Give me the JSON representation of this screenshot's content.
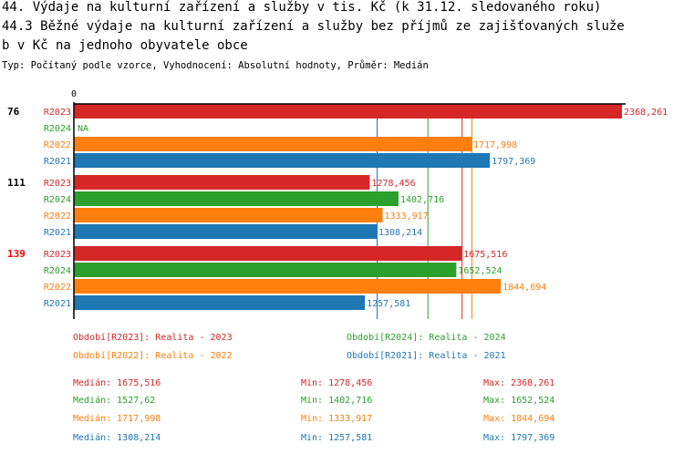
{
  "title_lines": [
    "44. Výdaje na kulturní zařízení a služby v tis. Kč (k 31.12. sledovaného roku)",
    "44.3 Běžné výdaje na kulturní zařízení a služby bez příjmů ze zajišťovaných služe",
    "b v Kč na jednoho obyvatele obce"
  ],
  "subtitle": "Typ: Počítaný podle vzorce, Vyhodnocení: Absolutní hodnoty, Průměr: Medián",
  "colors": {
    "R2023": "#d62728",
    "R2024": "#2ca02c",
    "R2022": "#ff7f0e",
    "R2021": "#1f77b4",
    "highlight": "#ff0000"
  },
  "chart_data": {
    "type": "bar",
    "orientation": "horizontal",
    "x_tick_labels": [
      "0"
    ],
    "xlim": [
      0,
      2368.261
    ],
    "groups": [
      {
        "label": "76",
        "highlight": false,
        "bars": [
          {
            "series": "R2023",
            "value": 2368.261,
            "label": "2368,261"
          },
          {
            "series": "R2024",
            "value": null,
            "label": "NA"
          },
          {
            "series": "R2022",
            "value": 1717.998,
            "label": "1717,998"
          },
          {
            "series": "R2021",
            "value": 1797.369,
            "label": "1797,369"
          }
        ]
      },
      {
        "label": "111",
        "highlight": false,
        "bars": [
          {
            "series": "R2023",
            "value": 1278.456,
            "label": "1278,456"
          },
          {
            "series": "R2024",
            "value": 1402.716,
            "label": "1402,716"
          },
          {
            "series": "R2022",
            "value": 1333.917,
            "label": "1333,917"
          },
          {
            "series": "R2021",
            "value": 1308.214,
            "label": "1308,214"
          }
        ]
      },
      {
        "label": "139",
        "highlight": true,
        "bars": [
          {
            "series": "R2023",
            "value": 1675.516,
            "label": "1675,516"
          },
          {
            "series": "R2024",
            "value": 1652.524,
            "label": "1652,524"
          },
          {
            "series": "R2022",
            "value": 1844.694,
            "label": "1844,694"
          },
          {
            "series": "R2021",
            "value": 1257.581,
            "label": "1257,581"
          }
        ]
      }
    ],
    "median_lines": [
      {
        "series": "R2021",
        "value": 1308.214
      },
      {
        "series": "R2024",
        "value": 1527.62
      },
      {
        "series": "R2023",
        "value": 1675.516
      },
      {
        "series": "R2022",
        "value": 1717.998
      }
    ],
    "legend": [
      {
        "series": "R2023",
        "text": "Období[R2023]: Realita - 2023"
      },
      {
        "series": "R2024",
        "text": "Období[R2024]: Realita - 2024"
      },
      {
        "series": "R2022",
        "text": "Období[R2022]: Realita - 2022"
      },
      {
        "series": "R2021",
        "text": "Období[R2021]: Realita - 2021"
      }
    ],
    "stats": [
      {
        "series": "R2023",
        "median": "Medián: 1675,516",
        "min": "Min: 1278,456",
        "max": "Max: 2368,261"
      },
      {
        "series": "R2024",
        "median": "Medián: 1527,62",
        "min": "Min: 1402,716",
        "max": "Max: 1652,524"
      },
      {
        "series": "R2022",
        "median": "Medián: 1717,998",
        "min": "Min: 1333,917",
        "max": "Max: 1844,694"
      },
      {
        "series": "R2021",
        "median": "Medián: 1308,214",
        "min": "Min: 1257,581",
        "max": "Max: 1797,369"
      }
    ]
  }
}
